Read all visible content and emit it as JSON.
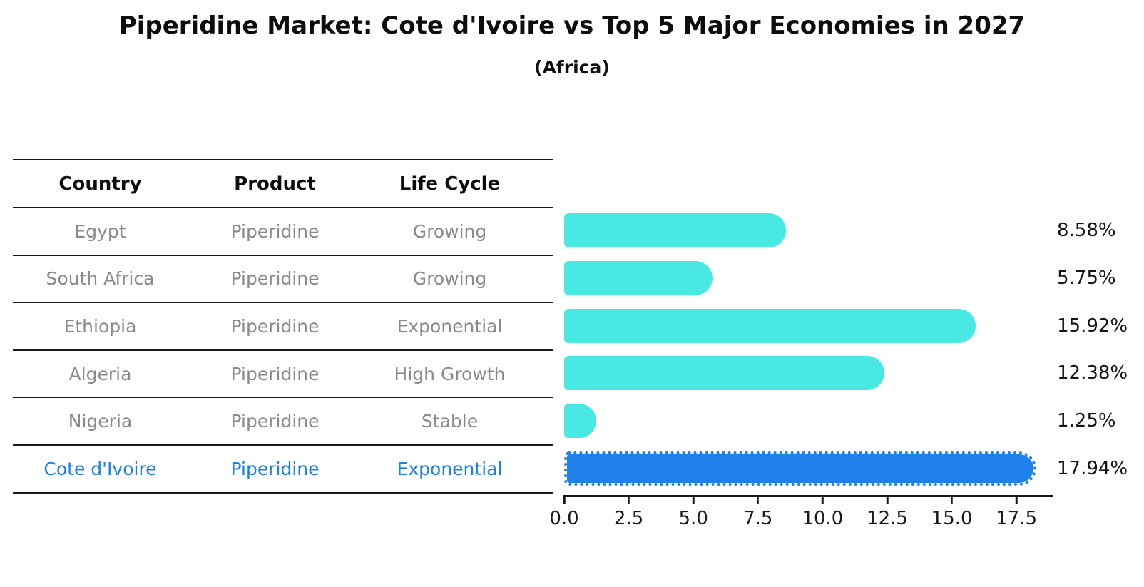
{
  "title": "Piperidine Market: Cote d'Ivoire vs Top 5 Major Economies in 2027",
  "subtitle": "(Africa)",
  "table": {
    "headers": [
      "Country",
      "Product",
      "Life Cycle"
    ],
    "rows": [
      {
        "country": "Egypt",
        "product": "Piperidine",
        "life_cycle": "Growing"
      },
      {
        "country": "South Africa",
        "product": "Piperidine",
        "life_cycle": "Growing"
      },
      {
        "country": "Ethiopia",
        "product": "Piperidine",
        "life_cycle": "Exponential"
      },
      {
        "country": "Algeria",
        "product": "Piperidine",
        "life_cycle": "High Growth"
      },
      {
        "country": "Nigeria",
        "product": "Piperidine",
        "life_cycle": "Stable"
      },
      {
        "country": "Cote d'Ivoire",
        "product": "Piperidine",
        "life_cycle": "Exponential"
      }
    ],
    "highlight_row_index": 5
  },
  "chart_data": {
    "type": "bar",
    "orientation": "horizontal",
    "title": "Piperidine Market: Cote d'Ivoire vs Top 5 Major Economies in 2027",
    "subtitle": "(Africa)",
    "categories": [
      "Egypt",
      "South Africa",
      "Ethiopia",
      "Algeria",
      "Nigeria",
      "Cote d'Ivoire"
    ],
    "values": [
      8.58,
      5.75,
      15.92,
      12.38,
      1.25,
      17.94
    ],
    "value_labels": [
      "8.58%",
      "5.75%",
      "15.92%",
      "12.38%",
      "1.25%",
      "17.94%"
    ],
    "xlabel": "",
    "ylabel": "",
    "x_ticks": [
      0.0,
      2.5,
      5.0,
      7.5,
      10.0,
      12.5,
      15.0,
      17.5
    ],
    "x_tick_labels": [
      "0.0",
      "2.5",
      "5.0",
      "7.5",
      "10.0",
      "12.5",
      "15.0",
      "17.5"
    ],
    "xlim": [
      0,
      18.9
    ],
    "grid": false,
    "legend": false,
    "bar_color": "#4AE8E3",
    "highlight_color": "#1E80EB",
    "highlight_index": 5,
    "highlight_edge_style": "dotted"
  },
  "colors": {
    "text_primary": "#0D0D0D",
    "text_muted": "#8A8A8A",
    "accent_blue": "#1E80EB",
    "bar_turquoise": "#4AE8E3",
    "line": "#1A1A1A"
  }
}
